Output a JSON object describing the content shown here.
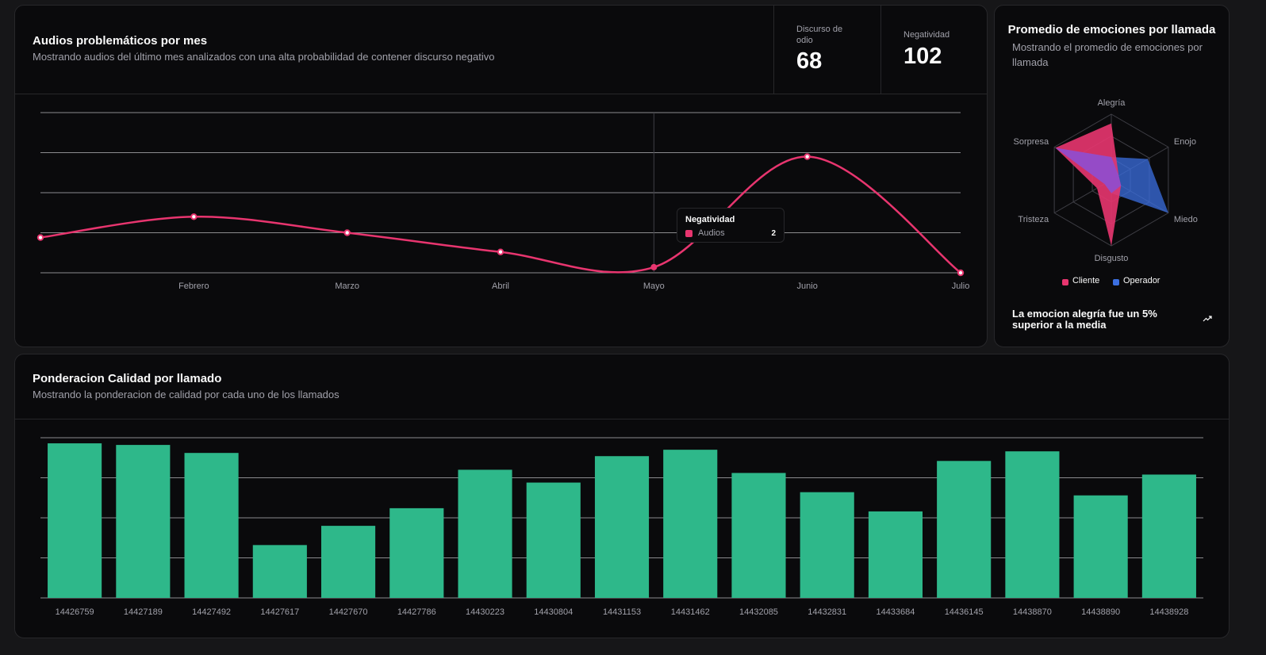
{
  "audios_card": {
    "title": "Audios problemáticos por mes",
    "subtitle": "Mostrando audios del último mes analizados con una alta probabilidad de contener discurso negativo",
    "stats": [
      {
        "label": "Discurso de odio",
        "value": "68"
      },
      {
        "label": "Negatividad",
        "value": "102"
      }
    ],
    "tooltip": {
      "title": "Negatividad",
      "series_label": "Audios",
      "value": "2"
    }
  },
  "emotions_card": {
    "title": "Promedio de emociones por llamada",
    "subtitle": "Mostrando el promedio de emociones por llamada",
    "legend": [
      {
        "label": "Cliente",
        "color": "#e8356f"
      },
      {
        "label": "Operador",
        "color": "#3b6fe0"
      }
    ],
    "footer": "La emocion alegría fue un 5% superior a la media",
    "footer_icon": "trending-up-icon"
  },
  "quality_card": {
    "title": "Ponderacion Calidad por llamado",
    "subtitle": "Mostrando la ponderacion de calidad por cada uno de los llamados"
  },
  "chart_data": [
    {
      "type": "line",
      "categories": [
        "",
        "Febrero",
        "Marzo",
        "Abril",
        "Mayo",
        "Junio",
        "Julio"
      ],
      "series": [
        {
          "name": "Audios",
          "values": [
            4.4,
            7,
            5,
            2.6,
            0.7,
            14.5,
            0
          ],
          "color": "#e8356f"
        }
      ],
      "ylim": [
        0,
        20
      ],
      "grid": true,
      "active_index": 4
    },
    {
      "type": "radar",
      "axes": [
        "Alegría",
        "Enojo",
        "Miedo",
        "Disgusto",
        "Tristeza",
        "Sorpresa"
      ],
      "series": [
        {
          "name": "Cliente",
          "values": [
            0.86,
            0.13,
            0.17,
            1.0,
            0.25,
            0.98
          ],
          "color": "#e8356f"
        },
        {
          "name": "Operador",
          "values": [
            0.35,
            0.64,
            1.0,
            0.2,
            0.12,
            0.98
          ],
          "color": "#3b6fe0"
        }
      ]
    },
    {
      "type": "bar",
      "categories": [
        "14426759",
        "14427189",
        "14427492",
        "14427617",
        "14427670",
        "14427786",
        "14430223",
        "14430804",
        "14431153",
        "14431462",
        "14432085",
        "14432831",
        "14433684",
        "14436145",
        "14438870",
        "14438890",
        "14438928"
      ],
      "values": [
        96.5,
        95.5,
        90.5,
        33,
        45,
        56,
        80,
        72,
        88.5,
        92.5,
        78,
        66,
        54,
        85.5,
        91.5,
        64,
        77
      ],
      "ylim": [
        0,
        100
      ],
      "color": "#2eb88a",
      "grid": true
    }
  ]
}
